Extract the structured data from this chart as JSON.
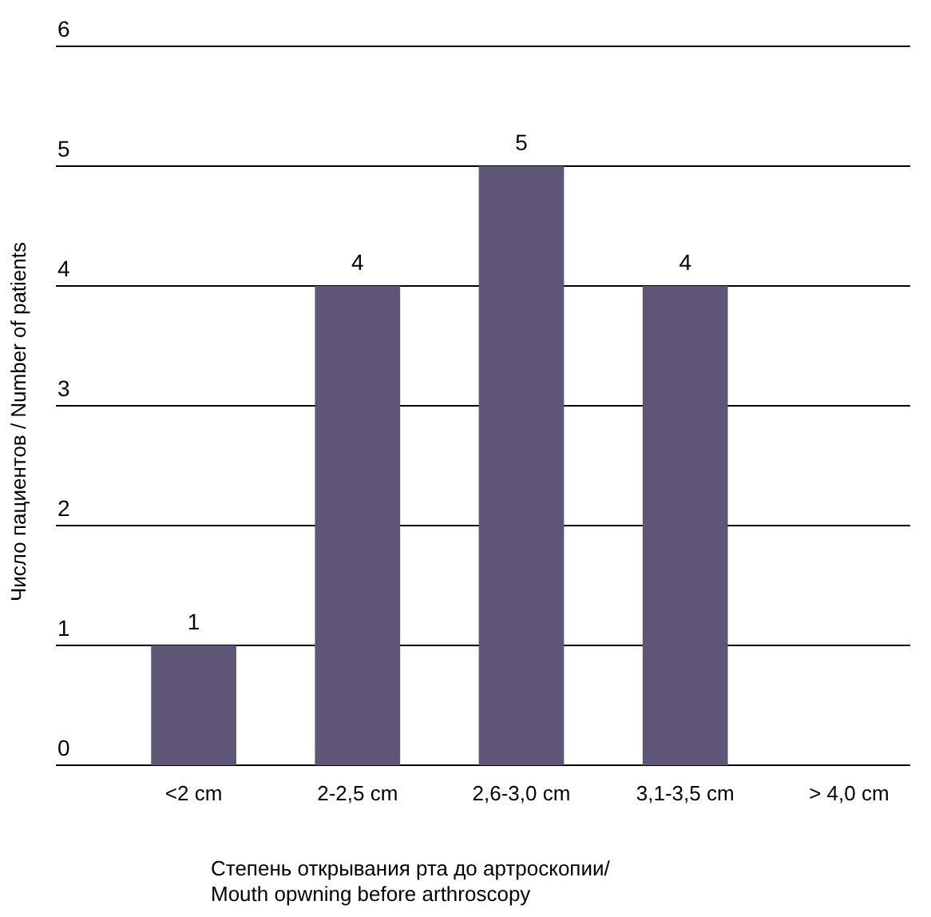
{
  "chart_data": {
    "type": "bar",
    "xlabel": "Степень открывания рта до артроскопии/\nMouth opwning before arthroscopy",
    "ylabel": "Число пациентов / Number of patients",
    "categories": [
      "<2 cm",
      "2-2,5 cm",
      "2,6-3,0 cm",
      "3,1-3,5 cm",
      "> 4,0 cm"
    ],
    "values": [
      1,
      4,
      5,
      4,
      0
    ],
    "color": "#5e5577",
    "value_labels": [
      "1",
      "4",
      "5",
      "4",
      null
    ],
    "ylim": [
      0,
      6
    ],
    "yticks": [
      0,
      1,
      2,
      3,
      4,
      5,
      6
    ],
    "grid": "y"
  }
}
